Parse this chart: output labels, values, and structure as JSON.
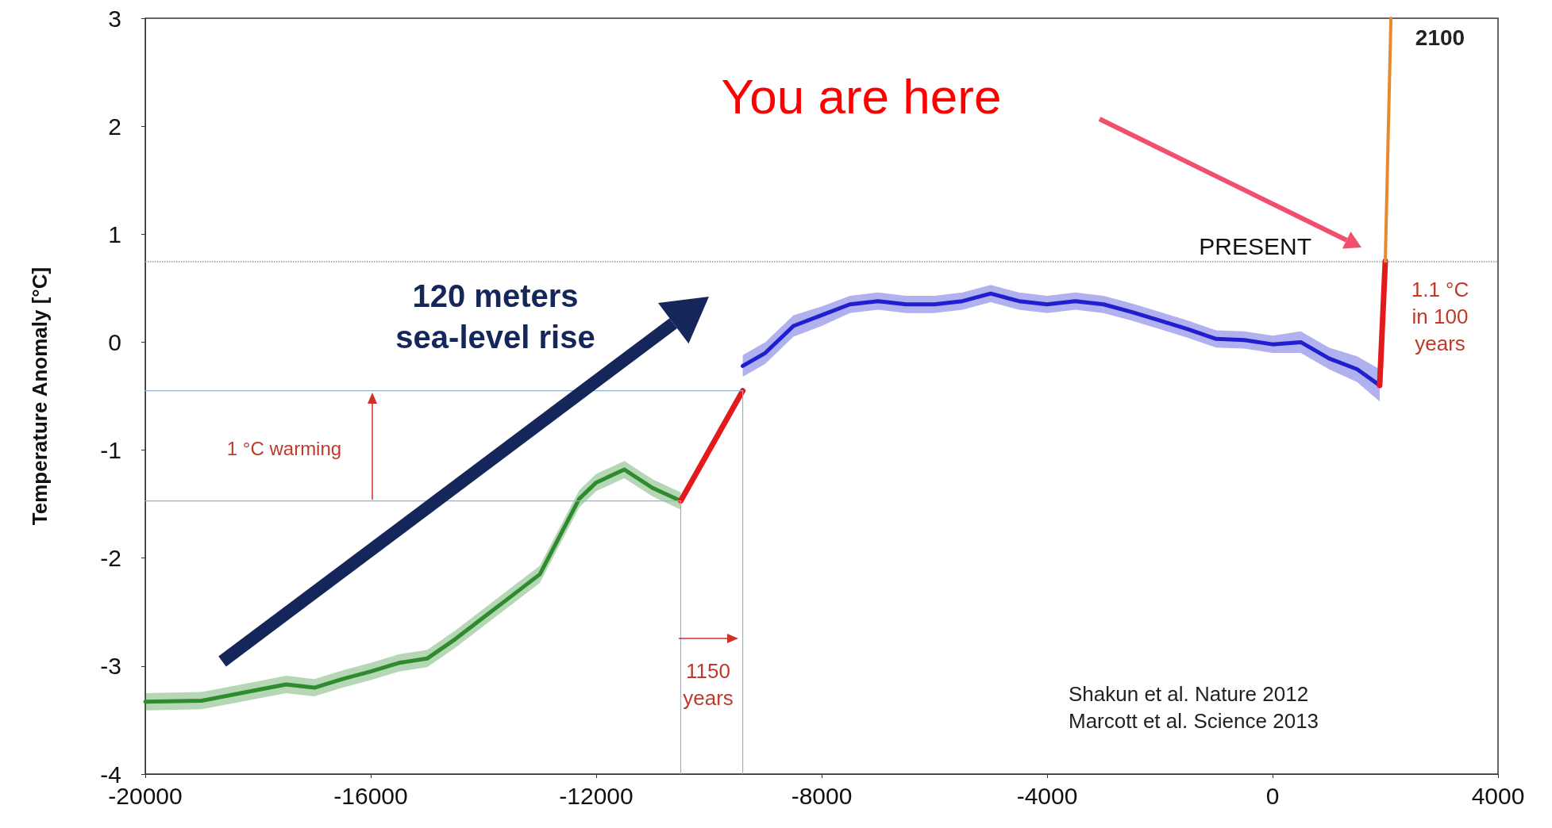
{
  "chart_data": {
    "type": "line",
    "ylabel": "Temperature Anomaly [°C]",
    "xlim": [
      -20000,
      4000
    ],
    "xticks": [
      -20000,
      -16000,
      -12000,
      -8000,
      -4000,
      0,
      4000
    ],
    "ylim": [
      -4,
      3
    ],
    "yticks": [
      -4,
      -3,
      -2,
      -1,
      0,
      1,
      2,
      3
    ],
    "marker": "none",
    "series": [
      {
        "color": "#2e8b2e",
        "x": [
          -20000,
          -19000,
          -18000,
          -17500,
          -17000,
          -16500,
          -16000,
          -15500,
          -15000,
          -14500,
          -14000,
          -13500,
          -13000,
          -12600,
          -12300,
          -12000,
          -11500,
          -11000,
          -10500
        ],
        "values": [
          -3.33,
          -3.32,
          -3.22,
          -3.17,
          -3.2,
          -3.12,
          -3.05,
          -2.97,
          -2.93,
          -2.75,
          -2.55,
          -2.35,
          -2.15,
          -1.75,
          -1.45,
          -1.3,
          -1.18,
          -1.35,
          -1.47
        ],
        "lower": [
          -3.41,
          -3.4,
          -3.3,
          -3.25,
          -3.28,
          -3.2,
          -3.13,
          -3.05,
          -3.01,
          -2.83,
          -2.63,
          -2.43,
          -2.23,
          -1.83,
          -1.53,
          -1.38,
          -1.26,
          -1.43,
          -1.55
        ],
        "upper": [
          -3.25,
          -3.24,
          -3.14,
          -3.09,
          -3.12,
          -3.04,
          -2.97,
          -2.89,
          -2.85,
          -2.67,
          -2.47,
          -2.27,
          -2.07,
          -1.67,
          -1.37,
          -1.22,
          -1.1,
          -1.27,
          -1.39
        ]
      },
      {
        "color": "#e31a1c",
        "x": [
          -10500,
          -9400
        ],
        "values": [
          -1.47,
          -0.45
        ]
      },
      {
        "color": "#1f1fd0",
        "x": [
          -9400,
          -9000,
          -8500,
          -8000,
          -7500,
          -7000,
          -6500,
          -6000,
          -5500,
          -5000,
          -4500,
          -4000,
          -3500,
          -3000,
          -2500,
          -2000,
          -1500,
          -1000,
          -500,
          0,
          500,
          1000,
          1500,
          1900
        ],
        "values": [
          -0.22,
          -0.1,
          0.15,
          0.25,
          0.35,
          0.38,
          0.35,
          0.35,
          0.38,
          0.45,
          0.38,
          0.35,
          0.38,
          0.35,
          0.28,
          0.2,
          0.12,
          0.03,
          0.02,
          -0.02,
          0,
          -0.15,
          -0.25,
          -0.4
        ],
        "lower": [
          -0.32,
          -0.2,
          0.05,
          0.15,
          0.27,
          0.3,
          0.27,
          0.27,
          0.3,
          0.37,
          0.3,
          0.27,
          0.3,
          0.27,
          0.2,
          0.12,
          0.04,
          -0.05,
          -0.06,
          -0.1,
          -0.1,
          -0.25,
          -0.37,
          -0.55
        ],
        "upper": [
          -0.12,
          0,
          0.25,
          0.33,
          0.43,
          0.46,
          0.43,
          0.43,
          0.46,
          0.53,
          0.46,
          0.43,
          0.46,
          0.43,
          0.36,
          0.28,
          0.2,
          0.11,
          0.1,
          0.06,
          0.1,
          -0.05,
          -0.13,
          -0.25
        ]
      },
      {
        "color": "#e31a1c",
        "x": [
          1900,
          2000
        ],
        "values": [
          -0.4,
          0.75
        ]
      },
      {
        "color": "#e8892f",
        "x": [
          2000,
          2100
        ],
        "values": [
          0.75,
          3
        ]
      },
      {
        "color": "#8fb3d3",
        "x": [
          -20000,
          -9400
        ],
        "values": [
          -0.45,
          -0.45
        ]
      },
      {
        "color": "#8fb3d3",
        "x": [
          -20000,
          -10500
        ],
        "values": [
          -1.47,
          -1.47
        ]
      },
      {
        "color": "#8fb3d3",
        "x": [
          -10500,
          -10500
        ],
        "values": [
          -1.47,
          -4
        ]
      },
      {
        "color": "#8fb3d3",
        "x": [
          -9400,
          -9400
        ],
        "values": [
          -0.45,
          -4
        ]
      }
    ],
    "ref_lines": [
      {
        "axis": "y",
        "value": 0.75,
        "label": "PRESENT",
        "color": "#8a9aa8",
        "line_style": "dotted"
      }
    ],
    "annotations": [
      "You are here",
      "120 meters\nsea-level rise",
      "1 °C warming",
      "1150\nyears",
      "2100",
      "1.1 °C\nin 100\nyears",
      "Shakun et al. Nature 2012\nMarcott et al. Science 2013"
    ]
  }
}
